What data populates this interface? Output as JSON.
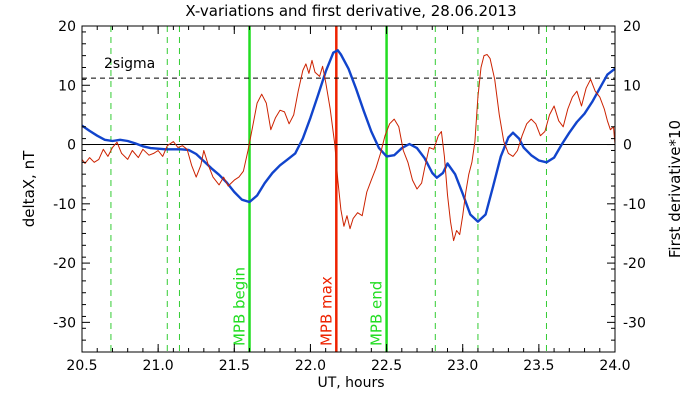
{
  "chart_data": {
    "type": "line",
    "title": "X-variations and first derivative, 28.06.2013",
    "xlabel": "UT, hours",
    "ylabel_left": "deltaX, nT",
    "ylabel_right": "First derivative*10",
    "xlim": [
      20.5,
      24.0
    ],
    "ylim": [
      -35,
      20
    ],
    "ylim_right": [
      -35,
      20
    ],
    "x_ticks": [
      "20.5",
      "21.0",
      "21.5",
      "22.0",
      "22.5",
      "23.0",
      "23.5",
      "24.0"
    ],
    "x_tick_values": [
      20.5,
      21.0,
      21.5,
      22.0,
      22.5,
      23.0,
      23.5,
      24.0
    ],
    "y_ticks": [
      "20",
      "10",
      "0",
      "-10",
      "-20",
      "-30"
    ],
    "y_tick_values": [
      20,
      10,
      0,
      -10,
      -20,
      -30
    ],
    "right_ticks": [
      "20",
      "10",
      "0",
      "-10",
      "-20",
      "-30"
    ],
    "right_tick_values": [
      20,
      10,
      0,
      -10,
      -20,
      -30
    ],
    "sigma_level": 11.2,
    "sigma_label": "2sigma",
    "colors": {
      "deltaX": "#1144cc",
      "derivative": "#cc2200",
      "mpb_boundary": "#22dd22",
      "mpb_max": "#ee2200",
      "dashed": "#33cc33"
    },
    "markers": [
      {
        "x": 21.6,
        "label": "MPB begin",
        "kind": "boundary"
      },
      {
        "x": 22.17,
        "label": "MPB max",
        "kind": "max"
      },
      {
        "x": 22.5,
        "label": "MPB end",
        "kind": "boundary"
      }
    ],
    "dashed_x": [
      20.69,
      21.06,
      21.14,
      22.82,
      23.1,
      23.55
    ],
    "series": [
      {
        "key": "deltaX",
        "name": "deltaX, nT",
        "points": [
          [
            20.5,
            3.2
          ],
          [
            20.55,
            2.3
          ],
          [
            20.6,
            1.5
          ],
          [
            20.65,
            0.8
          ],
          [
            20.7,
            0.6
          ],
          [
            20.75,
            0.8
          ],
          [
            20.8,
            0.6
          ],
          [
            20.85,
            0.2
          ],
          [
            20.9,
            -0.3
          ],
          [
            20.95,
            -0.6
          ],
          [
            21.0,
            -0.7
          ],
          [
            21.05,
            -0.8
          ],
          [
            21.1,
            -0.8
          ],
          [
            21.15,
            -0.8
          ],
          [
            21.2,
            -0.9
          ],
          [
            21.25,
            -1.6
          ],
          [
            21.3,
            -2.8
          ],
          [
            21.35,
            -4.0
          ],
          [
            21.4,
            -5.1
          ],
          [
            21.45,
            -6.4
          ],
          [
            21.5,
            -8.0
          ],
          [
            21.55,
            -9.3
          ],
          [
            21.6,
            -9.7
          ],
          [
            21.65,
            -8.6
          ],
          [
            21.7,
            -6.5
          ],
          [
            21.75,
            -4.8
          ],
          [
            21.8,
            -3.5
          ],
          [
            21.85,
            -2.5
          ],
          [
            21.9,
            -1.5
          ],
          [
            21.95,
            1.0
          ],
          [
            22.0,
            4.5
          ],
          [
            22.05,
            8.3
          ],
          [
            22.1,
            12.3
          ],
          [
            22.15,
            15.5
          ],
          [
            22.18,
            15.9
          ],
          [
            22.2,
            15.2
          ],
          [
            22.25,
            12.8
          ],
          [
            22.3,
            9.4
          ],
          [
            22.35,
            5.7
          ],
          [
            22.4,
            2.2
          ],
          [
            22.45,
            -0.6
          ],
          [
            22.5,
            -2.0
          ],
          [
            22.55,
            -1.8
          ],
          [
            22.6,
            -0.6
          ],
          [
            22.65,
            0.1
          ],
          [
            22.7,
            -0.6
          ],
          [
            22.75,
            -2.3
          ],
          [
            22.8,
            -4.8
          ],
          [
            22.83,
            -5.6
          ],
          [
            22.87,
            -4.8
          ],
          [
            22.9,
            -3.2
          ],
          [
            22.95,
            -5.0
          ],
          [
            23.0,
            -8.3
          ],
          [
            23.05,
            -11.8
          ],
          [
            23.1,
            -13.0
          ],
          [
            23.15,
            -11.8
          ],
          [
            23.2,
            -7.0
          ],
          [
            23.25,
            -2.0
          ],
          [
            23.3,
            1.2
          ],
          [
            23.33,
            2.0
          ],
          [
            23.37,
            1.0
          ],
          [
            23.4,
            -0.5
          ],
          [
            23.45,
            -1.8
          ],
          [
            23.5,
            -2.7
          ],
          [
            23.55,
            -3.0
          ],
          [
            23.6,
            -2.2
          ],
          [
            23.65,
            0.0
          ],
          [
            23.7,
            2.0
          ],
          [
            23.75,
            3.8
          ],
          [
            23.8,
            5.2
          ],
          [
            23.85,
            7.2
          ],
          [
            23.9,
            9.5
          ],
          [
            23.95,
            11.8
          ],
          [
            24.0,
            12.8
          ]
        ]
      },
      {
        "key": "derivative",
        "name": "First derivative*10",
        "points": [
          [
            20.5,
            -2.5
          ],
          [
            20.52,
            -3.2
          ],
          [
            20.55,
            -2.2
          ],
          [
            20.58,
            -3.0
          ],
          [
            20.61,
            -2.5
          ],
          [
            20.64,
            -0.8
          ],
          [
            20.67,
            -2.0
          ],
          [
            20.7,
            -0.5
          ],
          [
            20.73,
            0.4
          ],
          [
            20.76,
            -1.5
          ],
          [
            20.8,
            -2.5
          ],
          [
            20.83,
            -1.0
          ],
          [
            20.87,
            -2.2
          ],
          [
            20.9,
            -0.8
          ],
          [
            20.94,
            -1.8
          ],
          [
            20.97,
            -1.5
          ],
          [
            21.0,
            -1.0
          ],
          [
            21.03,
            -2.0
          ],
          [
            21.06,
            -0.2
          ],
          [
            21.1,
            0.5
          ],
          [
            21.13,
            -0.5
          ],
          [
            21.16,
            -0.2
          ],
          [
            21.19,
            -0.8
          ],
          [
            21.22,
            -3.5
          ],
          [
            21.25,
            -5.5
          ],
          [
            21.28,
            -3.5
          ],
          [
            21.3,
            -1.0
          ],
          [
            21.33,
            -3.5
          ],
          [
            21.36,
            -5.5
          ],
          [
            21.4,
            -6.8
          ],
          [
            21.43,
            -5.5
          ],
          [
            21.46,
            -7.0
          ],
          [
            21.5,
            -6.0
          ],
          [
            21.53,
            -5.5
          ],
          [
            21.56,
            -4.5
          ],
          [
            21.59,
            -1.0
          ],
          [
            21.62,
            3.0
          ],
          [
            21.65,
            7.0
          ],
          [
            21.68,
            8.5
          ],
          [
            21.71,
            7.0
          ],
          [
            21.74,
            2.5
          ],
          [
            21.77,
            4.5
          ],
          [
            21.8,
            5.8
          ],
          [
            21.83,
            5.5
          ],
          [
            21.86,
            3.5
          ],
          [
            21.89,
            5.0
          ],
          [
            21.92,
            9.0
          ],
          [
            21.95,
            12.5
          ],
          [
            21.97,
            13.6
          ],
          [
            21.99,
            12.0
          ],
          [
            22.01,
            14.2
          ],
          [
            22.03,
            12.2
          ],
          [
            22.06,
            11.5
          ],
          [
            22.08,
            13.2
          ],
          [
            22.1,
            10.5
          ],
          [
            22.13,
            6.0
          ],
          [
            22.16,
            0.0
          ],
          [
            22.18,
            -6.0
          ],
          [
            22.2,
            -11.0
          ],
          [
            22.22,
            -13.8
          ],
          [
            22.24,
            -12.0
          ],
          [
            22.26,
            -14.2
          ],
          [
            22.28,
            -12.5
          ],
          [
            22.31,
            -11.5
          ],
          [
            22.34,
            -12.0
          ],
          [
            22.37,
            -8.0
          ],
          [
            22.4,
            -6.0
          ],
          [
            22.43,
            -4.0
          ],
          [
            22.46,
            -1.5
          ],
          [
            22.49,
            1.5
          ],
          [
            22.52,
            3.5
          ],
          [
            22.55,
            4.3
          ],
          [
            22.58,
            3.0
          ],
          [
            22.61,
            -1.0
          ],
          [
            22.64,
            -3.0
          ],
          [
            22.67,
            -6.0
          ],
          [
            22.7,
            -7.5
          ],
          [
            22.73,
            -6.5
          ],
          [
            22.75,
            -4.0
          ],
          [
            22.78,
            -0.5
          ],
          [
            22.81,
            -0.8
          ],
          [
            22.84,
            1.5
          ],
          [
            22.86,
            2.2
          ],
          [
            22.88,
            -2.0
          ],
          [
            22.9,
            -8.5
          ],
          [
            22.92,
            -13.0
          ],
          [
            22.94,
            -16.2
          ],
          [
            22.96,
            -14.5
          ],
          [
            22.98,
            -15.2
          ],
          [
            23.0,
            -12.0
          ],
          [
            23.02,
            -8.0
          ],
          [
            23.04,
            -5.0
          ],
          [
            23.06,
            -3.0
          ],
          [
            23.08,
            0.5
          ],
          [
            23.1,
            8.0
          ],
          [
            23.12,
            13.0
          ],
          [
            23.14,
            15.0
          ],
          [
            23.16,
            15.2
          ],
          [
            23.18,
            14.5
          ],
          [
            23.21,
            11.0
          ],
          [
            23.24,
            5.0
          ],
          [
            23.27,
            0.5
          ],
          [
            23.3,
            -1.5
          ],
          [
            23.33,
            -2.0
          ],
          [
            23.36,
            -1.0
          ],
          [
            23.39,
            1.5
          ],
          [
            23.42,
            3.5
          ],
          [
            23.45,
            4.3
          ],
          [
            23.48,
            3.5
          ],
          [
            23.51,
            1.5
          ],
          [
            23.54,
            2.2
          ],
          [
            23.57,
            5.0
          ],
          [
            23.6,
            6.5
          ],
          [
            23.63,
            4.0
          ],
          [
            23.66,
            3.0
          ],
          [
            23.69,
            6.0
          ],
          [
            23.72,
            8.0
          ],
          [
            23.75,
            9.0
          ],
          [
            23.78,
            6.5
          ],
          [
            23.81,
            9.5
          ],
          [
            23.84,
            11.0
          ],
          [
            23.87,
            9.0
          ],
          [
            23.9,
            8.0
          ],
          [
            23.93,
            6.0
          ],
          [
            23.95,
            4.0
          ],
          [
            23.97,
            2.5
          ],
          [
            23.99,
            3.0
          ],
          [
            24.0,
            0.0
          ]
        ]
      }
    ]
  }
}
